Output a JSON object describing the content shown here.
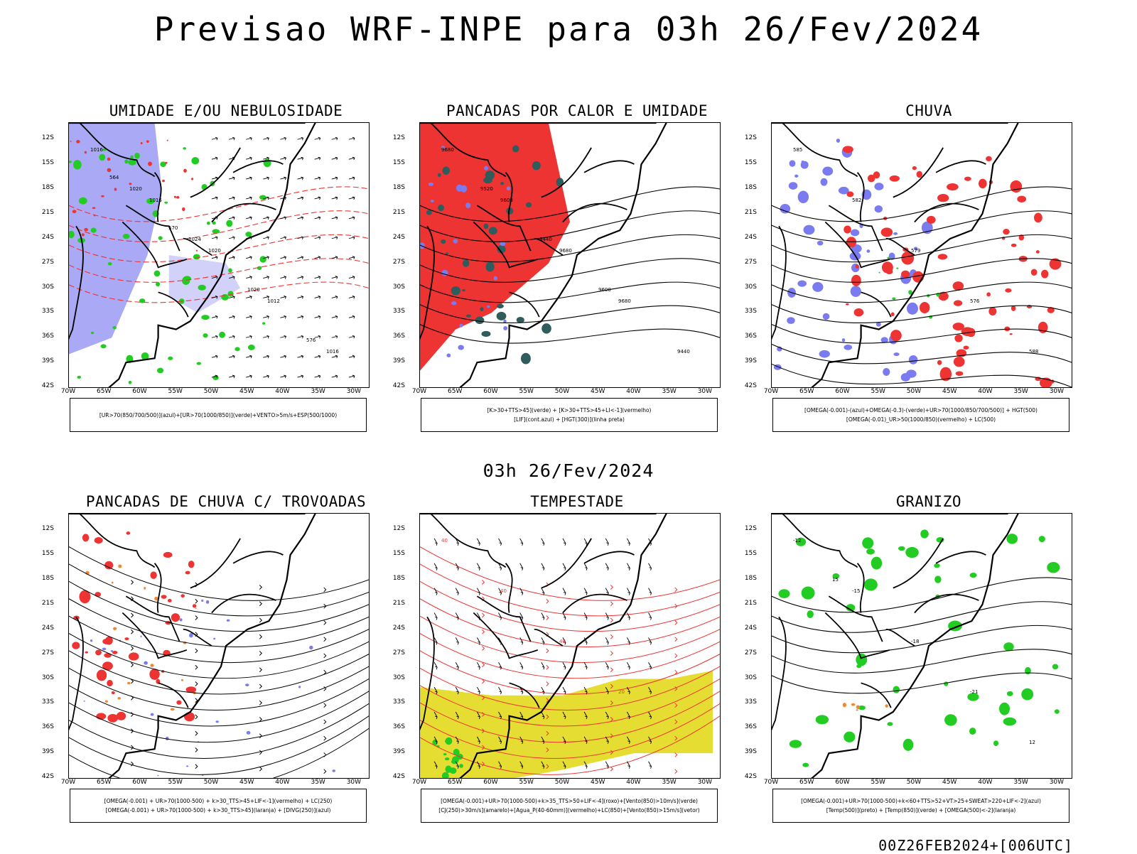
{
  "header": {
    "title": "Previsao WRF-INPE  para 03h 26/Fev/2024"
  },
  "mid_title": "03h 26/Fev/2024",
  "footer": "00Z26FEB2024+[006UTC]",
  "axes": {
    "lat_labels": [
      "12S",
      "15S",
      "18S",
      "21S",
      "24S",
      "27S",
      "30S",
      "33S",
      "36S",
      "39S",
      "42S"
    ],
    "lon_labels": [
      "70W",
      "65W",
      "60W",
      "55W",
      "50W",
      "45W",
      "40W",
      "35W",
      "30W"
    ]
  },
  "colors": {
    "blue": "#7b7bf0",
    "green": "#22cc22",
    "red": "#ee3333",
    "teal": "#2f5c5c",
    "yellow": "#e6dd33",
    "orange": "#ee8833"
  },
  "panels": [
    {
      "id": "umidade",
      "title": "UMIDADE E/OU NEBULOSIDADE",
      "legend": [
        "[UR>70(850/700/500)](azul)+[UR>70(1000/850)](verde)+VENTO>5m/s+ESP(500/1000)"
      ],
      "contour_labels": [
        "1016",
        "1016",
        "1020",
        "1012",
        "1016",
        "1020",
        "1024",
        "1020",
        "576",
        "564",
        "570"
      ]
    },
    {
      "id": "pancadas-calor",
      "title": "PANCADAS POR CALOR E UMIDADE",
      "legend": [
        "[K>30+TTS>45](verde) + [K>30+TTS>45+LI<-1](vermelho)",
        "[LIF](cont.azul) + [HGT(300)](linha preta)"
      ],
      "contour_labels": [
        "9680",
        "9600",
        "9680",
        "9680",
        "9440",
        "9520",
        "9440",
        "9600"
      ]
    },
    {
      "id": "chuva",
      "title": "CHUVA",
      "legend": [
        "[OMEGA(-0.001)-(azul)+OMEGA(-0.3)-(verde)+UR>70(1000/850/700/500)] + HGT(500)",
        "[OMEGA(-0.01)_UR>50(1000/850)(vermelho) + LC(500)"
      ],
      "contour_labels": [
        "585",
        "582",
        "579",
        "576",
        "588"
      ]
    },
    {
      "id": "pancadas-trovoadas",
      "title": "PANCADAS DE CHUVA C/ TROVOADAS",
      "legend": [
        "[OMEGA(-0.001) + UR>70(1000-500) + k>30_TTS>45+LIF<-1](vermelho) + LC(250)",
        "[OMEGA(-0.001) + UR>70(1000-500) + k>30_TTS>45](laranja) + [DIVG(250)](azul)"
      ],
      "contour_labels": []
    },
    {
      "id": "tempestade",
      "title": "TEMPESTADE",
      "legend": [
        "[OMEGA(-0.001)+UR>70(1000-500)+k>35_TTS>50+LIF<-4](roxo)+[Vento(850)>10m/s](verde)",
        "[CJ(250)>30m/s](amarelo)+[Agua_P(40-60mm)](vermelho)+LC(850)+[Vento(850)>15m/s](vetor)"
      ],
      "contour_labels": [
        "40",
        "40",
        "40",
        "20"
      ]
    },
    {
      "id": "granizo",
      "title": "GRANIZO",
      "legend": [
        "[OMEGA(-0.001)+UR>70(1000-500)+k<60+TTS>52+VT>25+SWEAT>220+LIF<-2](azul)",
        "[Temp(500)](preto) + [Temp(850)](verde) + [OMEGA(500)<-2](laranja)"
      ],
      "contour_labels": [
        "-12",
        "-15",
        "-18",
        "-21",
        "12",
        "15"
      ]
    }
  ]
}
